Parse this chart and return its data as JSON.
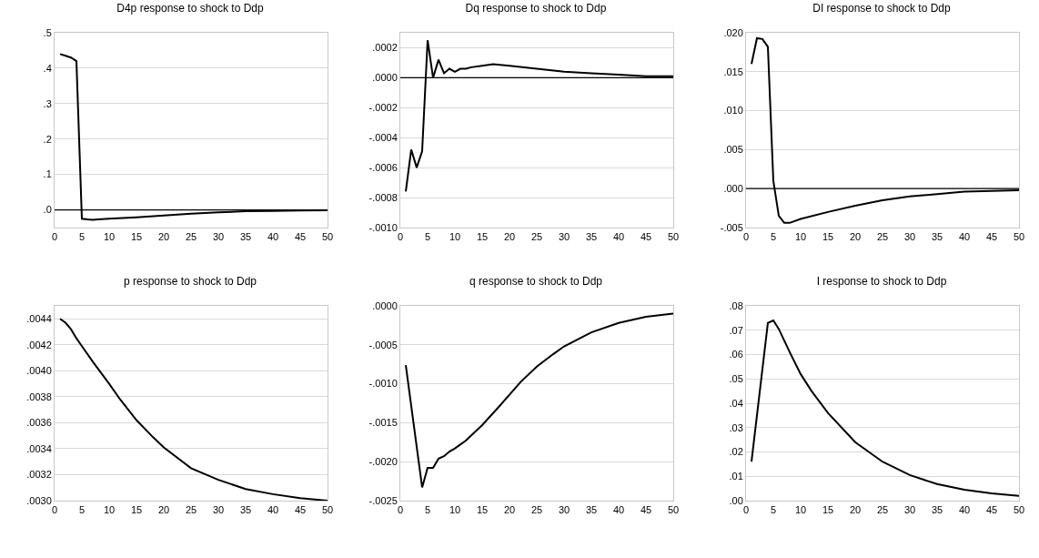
{
  "chart_data": [
    {
      "type": "line",
      "title": "D4p response to shock to Ddp",
      "x": [
        1,
        2,
        3,
        4,
        5,
        6,
        7,
        8,
        10,
        15,
        20,
        25,
        30,
        35,
        40,
        45,
        50
      ],
      "series": [
        {
          "color": "#000000",
          "values": [
            0.44,
            0.435,
            0.43,
            0.42,
            -0.025,
            -0.027,
            -0.028,
            -0.027,
            -0.025,
            -0.021,
            -0.016,
            -0.011,
            -0.007,
            -0.004,
            -0.003,
            -0.002,
            -0.001
          ]
        }
      ],
      "xlim": [
        0,
        50
      ],
      "xticks": [
        0,
        5,
        10,
        15,
        20,
        25,
        30,
        35,
        40,
        45,
        50
      ],
      "ylim": [
        -0.05,
        0.5
      ],
      "yticks": [
        {
          "value": 0,
          "label": ".0"
        },
        {
          "value": 0.1,
          "label": ".1"
        },
        {
          "value": 0.2,
          "label": ".2"
        },
        {
          "value": 0.3,
          "label": ".3"
        },
        {
          "value": 0.4,
          "label": ".4"
        },
        {
          "value": 0.5,
          "label": ".5"
        }
      ],
      "grid": "y",
      "ref_lines": [
        {
          "axis": "y",
          "value": 0,
          "color": "#000000"
        }
      ]
    },
    {
      "type": "line",
      "title": "Dq response to shock to Ddp",
      "x": [
        1,
        2,
        3,
        4,
        5,
        6,
        7,
        8,
        9,
        10,
        11,
        12,
        13,
        15,
        17,
        20,
        25,
        30,
        35,
        40,
        45,
        50
      ],
      "series": [
        {
          "color": "#000000",
          "values": [
            -0.00076,
            -0.00048,
            -0.0006,
            -0.00049,
            0.00025,
            0.0,
            0.00012,
            3e-05,
            6e-05,
            4e-05,
            6e-05,
            6e-05,
            7e-05,
            8e-05,
            9e-05,
            8e-05,
            6e-05,
            4e-05,
            3e-05,
            2e-05,
            1e-05,
            1e-05
          ]
        }
      ],
      "xlim": [
        0,
        50
      ],
      "xticks": [
        0,
        5,
        10,
        15,
        20,
        25,
        30,
        35,
        40,
        45,
        50
      ],
      "ylim": [
        -0.001,
        0.0003
      ],
      "yticks": [
        {
          "value": -0.001,
          "label": "-.0010"
        },
        {
          "value": -0.0008,
          "label": "-.0008"
        },
        {
          "value": -0.0006,
          "label": "-.0006"
        },
        {
          "value": -0.0004,
          "label": "-.0004"
        },
        {
          "value": -0.0002,
          "label": "-.0002"
        },
        {
          "value": 0,
          "label": ".0000"
        },
        {
          "value": 0.0002,
          "label": ".0002"
        }
      ],
      "grid": "y",
      "ref_lines": [
        {
          "axis": "y",
          "value": 0,
          "color": "#000000"
        }
      ]
    },
    {
      "type": "line",
      "title": "DI response to shock to Ddp",
      "x": [
        1,
        2,
        3,
        4,
        5,
        6,
        7,
        8,
        10,
        15,
        20,
        25,
        30,
        35,
        40,
        45,
        50
      ],
      "series": [
        {
          "color": "#000000",
          "values": [
            0.016,
            0.0193,
            0.0192,
            0.0182,
            0.001,
            -0.0035,
            -0.0044,
            -0.0044,
            -0.0039,
            -0.003,
            -0.0022,
            -0.0015,
            -0.001,
            -0.0007,
            -0.0004,
            -0.0003,
            -0.0002
          ]
        }
      ],
      "xlim": [
        0,
        50
      ],
      "xticks": [
        0,
        5,
        10,
        15,
        20,
        25,
        30,
        35,
        40,
        45,
        50
      ],
      "ylim": [
        -0.005,
        0.02
      ],
      "yticks": [
        {
          "value": -0.005,
          "label": "-.005"
        },
        {
          "value": 0,
          "label": ".000"
        },
        {
          "value": 0.005,
          "label": ".005"
        },
        {
          "value": 0.01,
          "label": ".010"
        },
        {
          "value": 0.015,
          "label": ".015"
        },
        {
          "value": 0.02,
          "label": ".020"
        }
      ],
      "grid": "y",
      "ref_lines": [
        {
          "axis": "y",
          "value": 0,
          "color": "#000000"
        }
      ]
    },
    {
      "type": "line",
      "title": "p response to shock to Ddp",
      "x": [
        1,
        2,
        3,
        4,
        5,
        7,
        10,
        12,
        15,
        18,
        20,
        25,
        30,
        35,
        40,
        45,
        50
      ],
      "series": [
        {
          "color": "#000000",
          "values": [
            0.0044,
            0.00437,
            0.00432,
            0.00425,
            0.00419,
            0.00407,
            0.0039,
            0.00378,
            0.00362,
            0.00349,
            0.00341,
            0.00325,
            0.00316,
            0.00309,
            0.00305,
            0.00302,
            0.003
          ]
        }
      ],
      "xlim": [
        0,
        50
      ],
      "xticks": [
        0,
        5,
        10,
        15,
        20,
        25,
        30,
        35,
        40,
        45,
        50
      ],
      "ylim": [
        0.003,
        0.0045
      ],
      "yticks": [
        {
          "value": 0.003,
          "label": ".0030"
        },
        {
          "value": 0.0032,
          "label": ".0032"
        },
        {
          "value": 0.0034,
          "label": ".0034"
        },
        {
          "value": 0.0036,
          "label": ".0036"
        },
        {
          "value": 0.0038,
          "label": ".0038"
        },
        {
          "value": 0.004,
          "label": ".0040"
        },
        {
          "value": 0.0042,
          "label": ".0042"
        },
        {
          "value": 0.0044,
          "label": ".0044"
        }
      ],
      "grid": "y"
    },
    {
      "type": "line",
      "title": "q response to shock to Ddp",
      "x": [
        1,
        4,
        5,
        6,
        7,
        8,
        9,
        10,
        12,
        15,
        18,
        20,
        22,
        25,
        28,
        30,
        35,
        40,
        45,
        50
      ],
      "series": [
        {
          "color": "#000000",
          "values": [
            -0.00076,
            -0.00233,
            -0.00208,
            -0.00208,
            -0.00196,
            -0.00193,
            -0.00187,
            -0.00183,
            -0.00173,
            -0.00153,
            -0.0013,
            -0.00114,
            -0.00098,
            -0.00078,
            -0.00062,
            -0.00052,
            -0.00034,
            -0.00022,
            -0.00014,
            -0.0001
          ]
        }
      ],
      "xlim": [
        0,
        50
      ],
      "xticks": [
        0,
        5,
        10,
        15,
        20,
        25,
        30,
        35,
        40,
        45,
        50
      ],
      "ylim": [
        -0.0025,
        0
      ],
      "yticks": [
        {
          "value": -0.0025,
          "label": "-.0025"
        },
        {
          "value": -0.002,
          "label": "-.0020"
        },
        {
          "value": -0.0015,
          "label": "-.0015"
        },
        {
          "value": -0.001,
          "label": "-.0010"
        },
        {
          "value": -0.0005,
          "label": "-.0005"
        },
        {
          "value": 0,
          "label": ".0000"
        }
      ],
      "grid": "y"
    },
    {
      "type": "line",
      "title": "I response to shock to Ddp",
      "x": [
        1,
        4,
        5,
        6,
        8,
        10,
        12,
        15,
        20,
        25,
        30,
        35,
        40,
        45,
        50
      ],
      "series": [
        {
          "color": "#000000",
          "values": [
            0.016,
            0.073,
            0.074,
            0.0705,
            0.061,
            0.052,
            0.045,
            0.036,
            0.024,
            0.016,
            0.0105,
            0.0068,
            0.0045,
            0.003,
            0.002
          ]
        }
      ],
      "xlim": [
        0,
        50
      ],
      "xticks": [
        0,
        5,
        10,
        15,
        20,
        25,
        30,
        35,
        40,
        45,
        50
      ],
      "ylim": [
        0,
        0.08
      ],
      "yticks": [
        {
          "value": 0,
          "label": ".00"
        },
        {
          "value": 0.01,
          "label": ".01"
        },
        {
          "value": 0.02,
          "label": ".02"
        },
        {
          "value": 0.03,
          "label": ".03"
        },
        {
          "value": 0.04,
          "label": ".04"
        },
        {
          "value": 0.05,
          "label": ".05"
        },
        {
          "value": 0.06,
          "label": ".06"
        },
        {
          "value": 0.07,
          "label": ".07"
        },
        {
          "value": 0.08,
          "label": ".08"
        }
      ],
      "grid": "y"
    }
  ]
}
